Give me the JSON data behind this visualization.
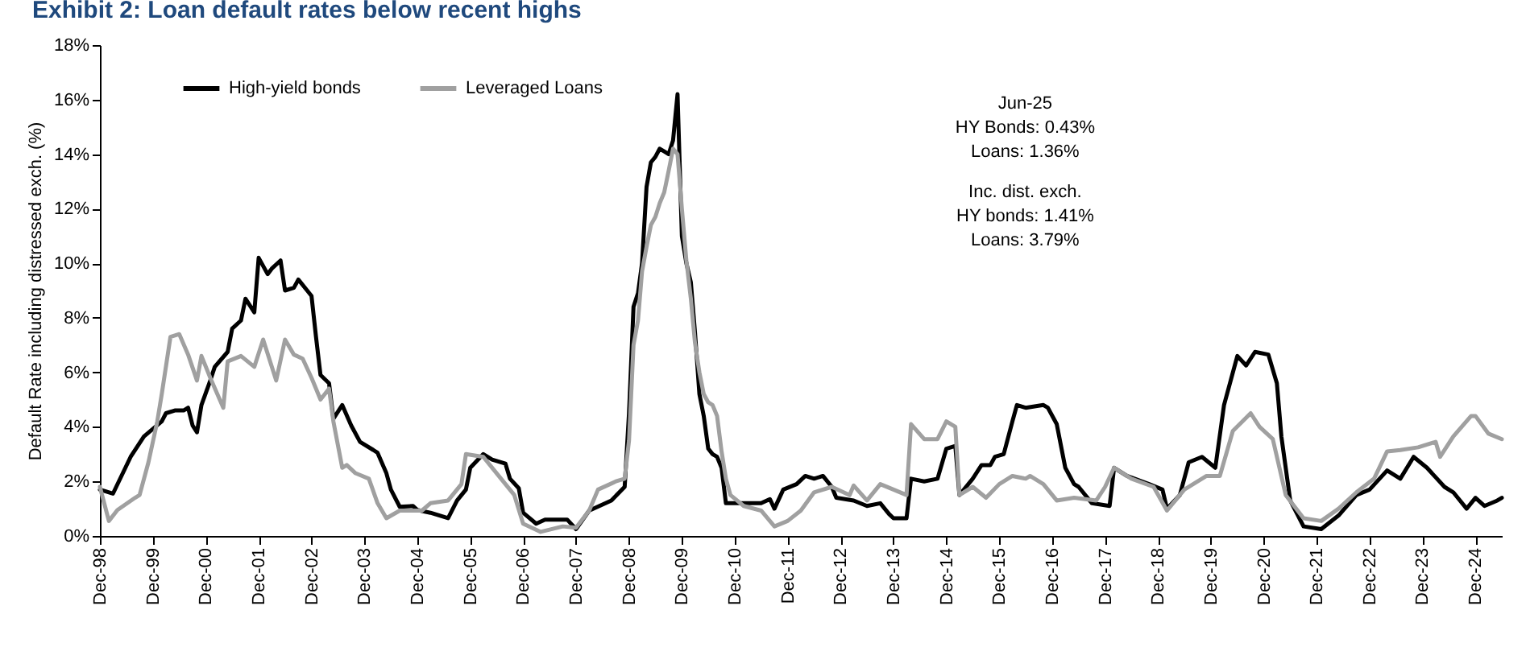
{
  "chart_data": {
    "type": "line",
    "title": "Exhibit 2: Loan default rates below recent highs",
    "ylabel": "Default Rate including distressed exch. (%)",
    "legend": "top left",
    "marker": "none",
    "line_style": "solid",
    "grid": false,
    "xlim": [
      "1998-12",
      "2025-06"
    ],
    "ylim": [
      0,
      18
    ],
    "yticks": [
      {
        "value": 0,
        "label": "0%"
      },
      {
        "value": 2,
        "label": "2%"
      },
      {
        "value": 4,
        "label": "4%"
      },
      {
        "value": 6,
        "label": "6%"
      },
      {
        "value": 8,
        "label": "8%"
      },
      {
        "value": 10,
        "label": "10%"
      },
      {
        "value": 12,
        "label": "12%"
      },
      {
        "value": 14,
        "label": "14%"
      },
      {
        "value": 16,
        "label": "16%"
      },
      {
        "value": 18,
        "label": "18%"
      }
    ],
    "xticks": [
      {
        "value": "1998-12",
        "label": "Dec-98"
      },
      {
        "value": "1999-12",
        "label": "Dec-99"
      },
      {
        "value": "2000-12",
        "label": "Dec-00"
      },
      {
        "value": "2001-12",
        "label": "Dec-01"
      },
      {
        "value": "2002-12",
        "label": "Dec-02"
      },
      {
        "value": "2003-12",
        "label": "Dec-03"
      },
      {
        "value": "2004-12",
        "label": "Dec-04"
      },
      {
        "value": "2005-12",
        "label": "Dec-05"
      },
      {
        "value": "2006-12",
        "label": "Dec-06"
      },
      {
        "value": "2007-12",
        "label": "Dec-07"
      },
      {
        "value": "2008-12",
        "label": "Dec-08"
      },
      {
        "value": "2009-12",
        "label": "Dec-09"
      },
      {
        "value": "2010-12",
        "label": "Dec-10"
      },
      {
        "value": "2011-12",
        "label": "Dec-11"
      },
      {
        "value": "2012-12",
        "label": "Dec-12"
      },
      {
        "value": "2013-12",
        "label": "Dec-13"
      },
      {
        "value": "2014-12",
        "label": "Dec-14"
      },
      {
        "value": "2015-12",
        "label": "Dec-15"
      },
      {
        "value": "2016-12",
        "label": "Dec-16"
      },
      {
        "value": "2017-12",
        "label": "Dec-17"
      },
      {
        "value": "2018-12",
        "label": "Dec-18"
      },
      {
        "value": "2019-12",
        "label": "Dec-19"
      },
      {
        "value": "2020-12",
        "label": "Dec-20"
      },
      {
        "value": "2021-12",
        "label": "Dec-21"
      },
      {
        "value": "2022-12",
        "label": "Dec-22"
      },
      {
        "value": "2023-12",
        "label": "Dec-23"
      },
      {
        "value": "2024-12",
        "label": "Dec-24"
      }
    ],
    "annotations": [
      "Jun-25\nHY Bonds: 0.43%\nLoans: 1.36%",
      "Inc. dist. exch.\nHY bonds: 1.41%\nLoans: 3.79%"
    ],
    "series": [
      {
        "name": "High-yield bonds",
        "color": "#000000",
        "x": [
          "1998-12",
          "1999-03",
          "1999-07",
          "1999-10",
          "2000-02",
          "2000-03",
          "2000-05",
          "2000-07",
          "2000-08",
          "2000-09",
          "2000-10",
          "2000-11",
          "2001-01",
          "2001-02",
          "2001-05",
          "2001-06",
          "2001-08",
          "2001-09",
          "2001-11",
          "2001-12",
          "2002-02",
          "2002-03",
          "2002-05",
          "2002-06",
          "2002-08",
          "2002-09",
          "2002-11",
          "2002-12",
          "2003-01",
          "2003-02",
          "2003-04",
          "2003-05",
          "2003-07",
          "2003-09",
          "2003-11",
          "2004-02",
          "2004-03",
          "2004-05",
          "2004-06",
          "2004-08",
          "2004-11",
          "2004-12",
          "2005-03",
          "2005-07",
          "2005-09",
          "2005-11",
          "2005-12",
          "2006-03",
          "2006-05",
          "2006-08",
          "2006-09",
          "2006-11",
          "2006-12",
          "2007-03",
          "2007-05",
          "2007-10",
          "2007-12",
          "2008-03",
          "2008-08",
          "2008-11",
          "2008-12",
          "2009-01",
          "2009-02",
          "2009-03",
          "2009-04",
          "2009-05",
          "2009-06",
          "2009-07",
          "2009-08",
          "2009-09",
          "2009-10",
          "2009-11",
          "2009-12",
          "2010-01",
          "2010-02",
          "2010-03",
          "2010-04",
          "2010-05",
          "2010-06",
          "2010-07",
          "2010-08",
          "2010-09",
          "2010-10",
          "2011-06",
          "2011-08",
          "2011-09",
          "2011-11",
          "2012-02",
          "2012-04",
          "2012-06",
          "2012-08",
          "2012-10",
          "2012-11",
          "2013-03",
          "2013-06",
          "2013-09",
          "2013-11",
          "2013-12",
          "2014-03",
          "2014-04",
          "2014-07",
          "2014-10",
          "2014-12",
          "2015-02",
          "2015-03",
          "2015-04",
          "2015-06",
          "2015-08",
          "2015-10",
          "2015-11",
          "2016-01",
          "2016-03",
          "2016-04",
          "2016-06",
          "2016-10",
          "2016-11",
          "2017-01",
          "2017-03",
          "2017-05",
          "2017-06",
          "2017-09",
          "2018-01",
          "2018-02",
          "2018-05",
          "2018-10",
          "2019-01",
          "2019-02",
          "2019-05",
          "2019-07",
          "2019-10",
          "2020-01",
          "2020-03",
          "2020-06",
          "2020-08",
          "2020-10",
          "2021-01",
          "2021-03",
          "2021-04",
          "2021-06",
          "2021-09",
          "2022-01",
          "2022-05",
          "2022-09",
          "2022-12",
          "2023-04",
          "2023-07",
          "2023-10",
          "2024-01",
          "2024-05",
          "2024-07",
          "2024-10",
          "2024-12",
          "2025-02",
          "2025-05",
          "2025-06"
        ],
        "values": [
          1.7,
          1.55,
          2.9,
          3.65,
          4.2,
          4.5,
          4.6,
          4.6,
          4.7,
          4.05,
          3.8,
          4.8,
          5.7,
          6.2,
          6.75,
          7.6,
          7.9,
          8.7,
          8.2,
          10.2,
          9.6,
          9.8,
          10.1,
          9.0,
          9.1,
          9.4,
          9.0,
          8.8,
          7.3,
          5.9,
          5.6,
          4.3,
          4.8,
          4.05,
          3.45,
          3.15,
          3.05,
          2.3,
          1.7,
          1.07,
          1.1,
          0.95,
          0.85,
          0.65,
          1.3,
          1.7,
          2.5,
          3.0,
          2.8,
          2.65,
          2.1,
          1.75,
          0.85,
          0.45,
          0.6,
          0.6,
          0.25,
          0.93,
          1.3,
          1.8,
          4.5,
          8.4,
          8.9,
          10.0,
          12.8,
          13.7,
          13.9,
          14.2,
          14.1,
          14.0,
          14.5,
          16.2,
          11.0,
          10.0,
          9.3,
          7.5,
          5.2,
          4.4,
          3.2,
          3.0,
          2.9,
          2.5,
          1.2,
          1.2,
          1.35,
          1.0,
          1.7,
          1.9,
          2.2,
          2.1,
          2.2,
          1.8,
          1.4,
          1.3,
          1.1,
          1.2,
          0.8,
          0.65,
          0.65,
          2.1,
          2.0,
          2.1,
          3.2,
          3.3,
          1.5,
          1.7,
          2.1,
          2.6,
          2.6,
          2.9,
          3.0,
          4.2,
          4.8,
          4.7,
          4.8,
          4.7,
          4.1,
          2.5,
          1.9,
          1.8,
          1.2,
          1.1,
          2.5,
          2.2,
          1.9,
          1.7,
          1.0,
          1.5,
          2.7,
          2.9,
          2.5,
          4.8,
          6.6,
          6.25,
          6.75,
          6.65,
          5.6,
          3.65,
          1.3,
          0.35,
          0.25,
          0.75,
          1.5,
          1.7,
          2.4,
          2.1,
          2.9,
          2.5,
          1.8,
          1.6,
          1.0,
          1.4,
          1.1,
          1.3,
          1.4
        ]
      },
      {
        "name": "Leveraged Loans",
        "color": "#a0a0a0",
        "x": [
          "1998-12",
          "1999-02",
          "1999-04",
          "1999-08",
          "1999-09",
          "1999-11",
          "2000-01",
          "2000-02",
          "2000-04",
          "2000-06",
          "2000-08",
          "2000-10",
          "2000-11",
          "2001-01",
          "2001-04",
          "2001-05",
          "2001-08",
          "2001-11",
          "2002-01",
          "2002-04",
          "2002-06",
          "2002-08",
          "2002-10",
          "2002-12",
          "2003-02",
          "2003-04",
          "2003-05",
          "2003-07",
          "2003-08",
          "2003-10",
          "2004-01",
          "2004-03",
          "2004-05",
          "2004-08",
          "2005-01",
          "2005-03",
          "2005-07",
          "2005-10",
          "2005-11",
          "2006-03",
          "2006-06",
          "2006-10",
          "2006-12",
          "2007-04",
          "2007-09",
          "2007-12",
          "2008-03",
          "2008-05",
          "2008-09",
          "2008-11",
          "2008-12",
          "2009-01",
          "2009-02",
          "2009-03",
          "2009-04",
          "2009-05",
          "2009-06",
          "2009-07",
          "2009-08",
          "2009-09",
          "2009-10",
          "2009-11",
          "2009-12",
          "2010-01",
          "2010-02",
          "2010-03",
          "2010-04",
          "2010-05",
          "2010-06",
          "2010-07",
          "2010-08",
          "2010-09",
          "2010-10",
          "2010-11",
          "2011-02",
          "2011-06",
          "2011-09",
          "2011-12",
          "2012-03",
          "2012-06",
          "2012-10",
          "2013-02",
          "2013-03",
          "2013-06",
          "2013-09",
          "2013-12",
          "2014-03",
          "2014-04",
          "2014-07",
          "2014-10",
          "2014-12",
          "2015-02",
          "2015-03",
          "2015-06",
          "2015-09",
          "2015-12",
          "2016-03",
          "2016-06",
          "2016-07",
          "2016-10",
          "2017-01",
          "2017-05",
          "2017-10",
          "2017-12",
          "2018-02",
          "2018-06",
          "2018-11",
          "2019-02",
          "2019-06",
          "2019-11",
          "2020-02",
          "2020-05",
          "2020-09",
          "2020-11",
          "2021-02",
          "2021-05",
          "2021-09",
          "2022-01",
          "2022-05",
          "2022-09",
          "2023-01",
          "2023-04",
          "2023-07",
          "2023-11",
          "2024-03",
          "2024-04",
          "2024-07",
          "2024-11",
          "2024-12",
          "2025-03",
          "2025-06"
        ],
        "values": [
          1.8,
          0.55,
          0.95,
          1.4,
          1.5,
          2.7,
          4.2,
          5.2,
          7.3,
          7.4,
          6.65,
          5.7,
          6.6,
          5.8,
          4.7,
          6.4,
          6.6,
          6.2,
          7.2,
          5.7,
          7.2,
          6.65,
          6.5,
          5.8,
          5.0,
          5.4,
          4.2,
          2.5,
          2.6,
          2.3,
          2.1,
          1.2,
          0.65,
          0.93,
          0.93,
          1.2,
          1.3,
          1.9,
          3.0,
          2.9,
          2.3,
          1.5,
          0.45,
          0.15,
          0.35,
          0.3,
          0.93,
          1.7,
          2.0,
          2.1,
          3.5,
          7.0,
          7.9,
          9.7,
          10.6,
          11.4,
          11.7,
          12.2,
          12.6,
          13.4,
          14.2,
          14.0,
          12.0,
          10.1,
          8.7,
          7.1,
          6.0,
          5.2,
          4.9,
          4.8,
          4.4,
          3.1,
          2.1,
          1.5,
          1.1,
          0.93,
          0.35,
          0.55,
          0.93,
          1.6,
          1.8,
          1.5,
          1.85,
          1.3,
          1.9,
          1.7,
          1.5,
          4.1,
          3.55,
          3.55,
          4.2,
          4.0,
          1.5,
          1.8,
          1.4,
          1.9,
          2.2,
          2.1,
          2.2,
          1.9,
          1.3,
          1.4,
          1.3,
          1.8,
          2.5,
          2.1,
          1.8,
          0.93,
          1.7,
          2.2,
          2.2,
          3.85,
          4.5,
          4.0,
          3.55,
          1.5,
          0.65,
          0.55,
          1.0,
          1.6,
          2.1,
          3.1,
          3.15,
          3.25,
          3.45,
          2.9,
          3.65,
          4.4,
          4.4,
          3.75,
          3.55
        ]
      }
    ]
  }
}
